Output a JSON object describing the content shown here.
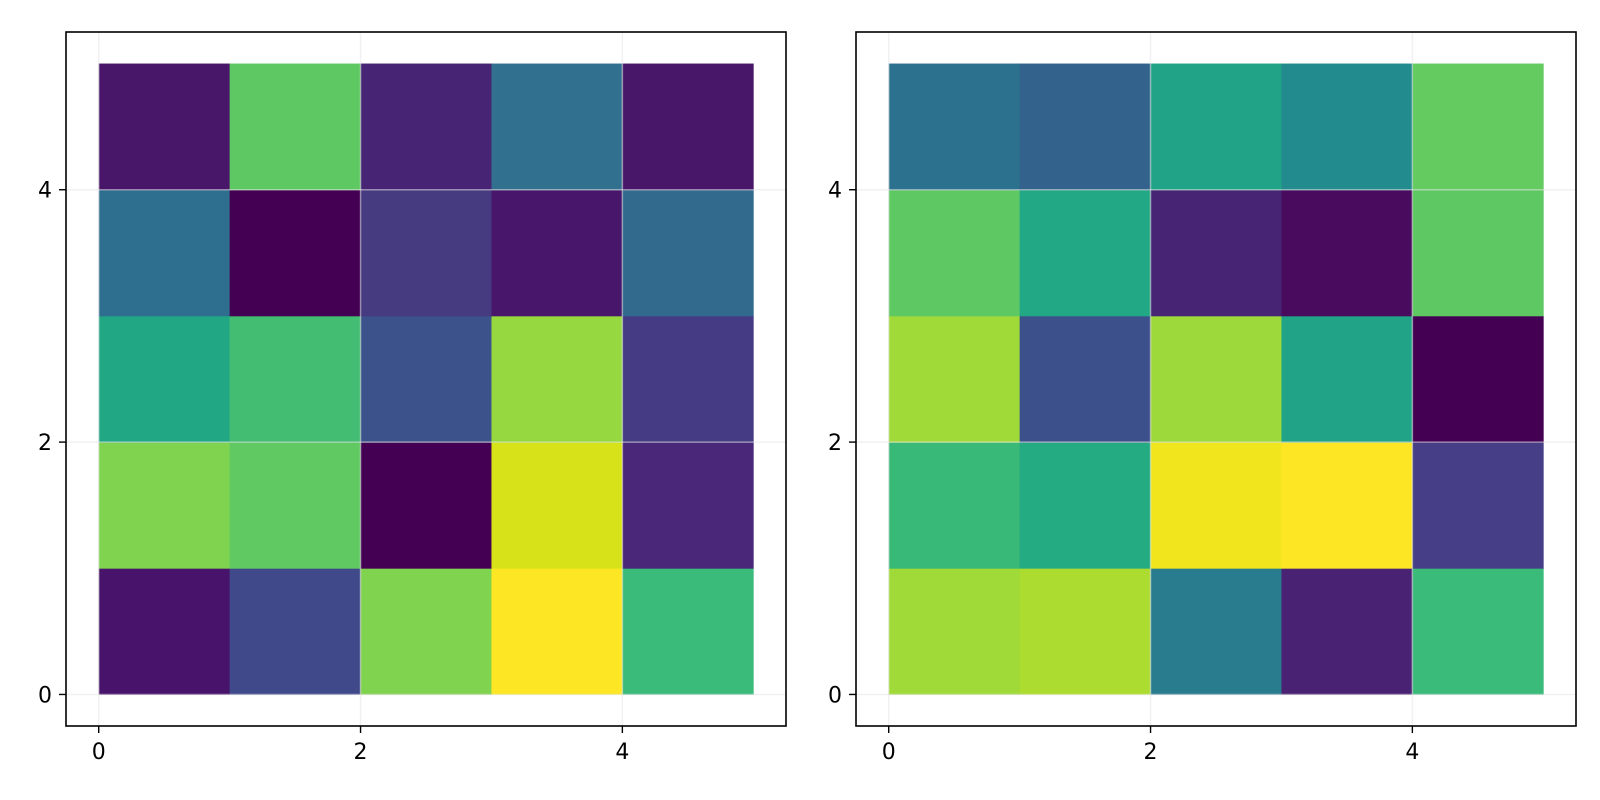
{
  "colors": {
    "background": "#ffffff",
    "grid": "#e6e6e6",
    "axis": "#000000"
  },
  "chart_data": [
    {
      "type": "heatmap",
      "title": "",
      "xlabel": "",
      "ylabel": "",
      "xlim": [
        -0.25,
        5.25
      ],
      "ylim": [
        -0.25,
        5.25
      ],
      "x_ticks": [
        0,
        2,
        4
      ],
      "y_ticks": [
        0,
        2,
        4
      ],
      "x_tick_labels": [
        "0",
        "2",
        "4"
      ],
      "y_tick_labels": [
        "0",
        "2",
        "4"
      ],
      "grid": true,
      "colormap": "viridis",
      "x_edges": [
        0,
        1,
        2,
        3,
        4,
        5
      ],
      "y_edges": [
        0,
        1,
        2,
        3,
        4,
        5
      ],
      "rows_bottom_to_top": [
        [
          "#48136a",
          "#404a8b",
          "#7fd34e",
          "#fde725",
          "#3bbb7a"
        ],
        [
          "#7fd34e",
          "#60c962",
          "#440154",
          "#d8e219",
          "#4a2779"
        ],
        [
          "#22a785",
          "#42bd71",
          "#3b528b",
          "#95d840",
          "#443b84"
        ],
        [
          "#2e6e8e",
          "#440154",
          "#463a80",
          "#48176c",
          "#316a8d"
        ],
        [
          "#48176a",
          "#5ec962",
          "#482475",
          "#31708e",
          "#48176a"
        ]
      ]
    },
    {
      "type": "heatmap",
      "title": "",
      "xlabel": "",
      "ylabel": "",
      "xlim": [
        -0.25,
        5.25
      ],
      "ylim": [
        -0.25,
        5.25
      ],
      "x_ticks": [
        0,
        2,
        4
      ],
      "y_ticks": [
        0,
        2,
        4
      ],
      "x_tick_labels": [
        "0",
        "2",
        "4"
      ],
      "y_tick_labels": [
        "0",
        "2",
        "4"
      ],
      "grid": true,
      "colormap": "viridis",
      "x_edges": [
        0,
        1,
        2,
        3,
        4,
        5
      ],
      "y_edges": [
        0,
        1,
        2,
        3,
        4,
        5
      ],
      "rows_bottom_to_top": [
        [
          "#a0da39",
          "#addc30",
          "#287c8e",
          "#4a2273",
          "#3bbb7a"
        ],
        [
          "#38b977",
          "#25ab82",
          "#f1e51d",
          "#fde725",
          "#463f87"
        ],
        [
          "#a0da39",
          "#3c508b",
          "#9dd93b",
          "#20a386",
          "#440154"
        ],
        [
          "#5ec962",
          "#22a884",
          "#482475",
          "#480b5e",
          "#5ec962"
        ],
        [
          "#2c728e",
          "#33638d",
          "#21a387",
          "#228b8d",
          "#63cb5f"
        ]
      ]
    }
  ]
}
